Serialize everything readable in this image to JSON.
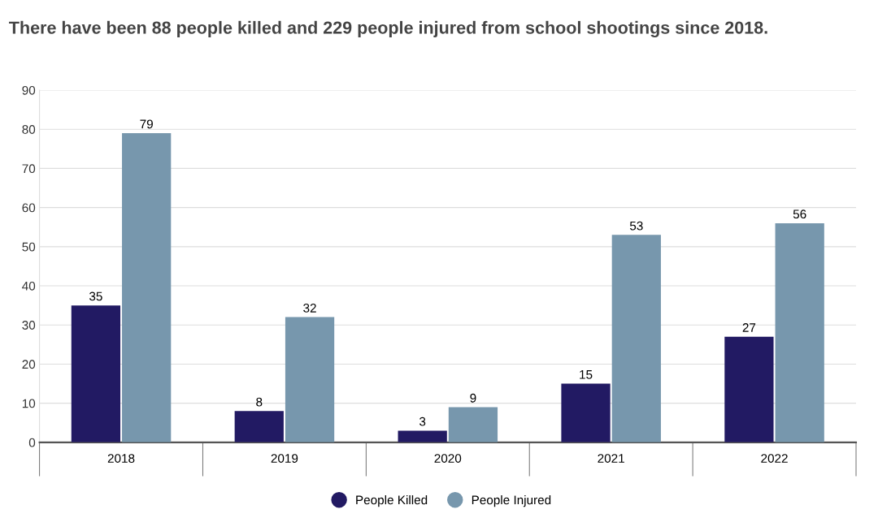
{
  "chart_data": {
    "type": "bar",
    "title": "There have been 88 people killed and 229 people injured from school shootings since 2018.",
    "categories": [
      "2018",
      "2019",
      "2020",
      "2021",
      "2022"
    ],
    "series": [
      {
        "name": "People Killed",
        "color": "#221a63",
        "values": [
          35,
          8,
          3,
          15,
          27
        ]
      },
      {
        "name": "People Injured",
        "color": "#7797ad",
        "values": [
          79,
          32,
          9,
          53,
          56
        ]
      }
    ],
    "ylim": [
      0,
      90
    ],
    "yticks": [
      0,
      10,
      20,
      30,
      40,
      50,
      60,
      70,
      80,
      90
    ],
    "grid": "y",
    "legend": "bottom",
    "data_labels": true
  }
}
